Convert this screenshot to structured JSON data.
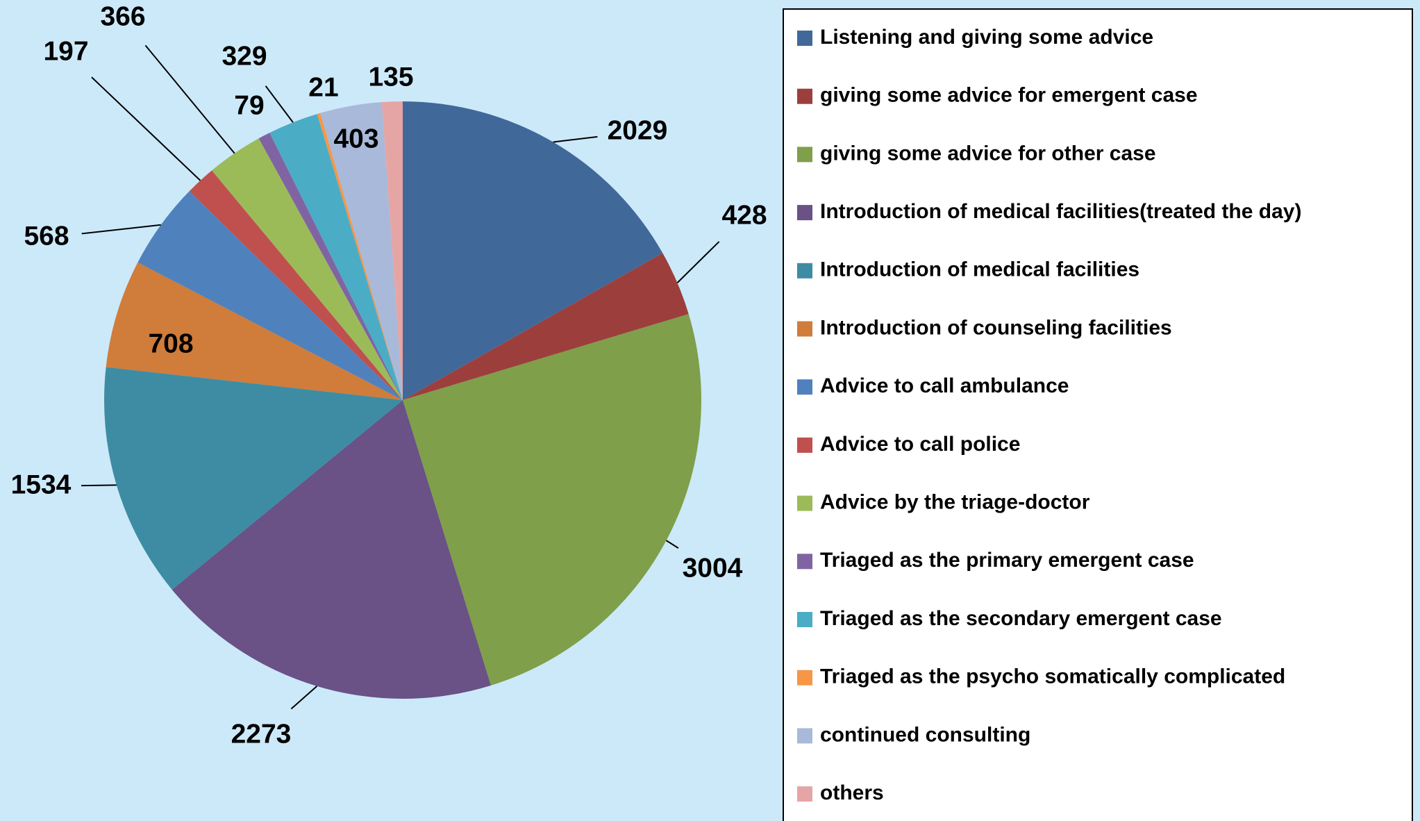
{
  "chart_data": {
    "type": "pie",
    "categories": [
      "Listening and giving some advice",
      "giving some advice for emergent case",
      "giving some advice for other case",
      "Introduction of medical facilities(treated the day)",
      "Introduction of medical facilities",
      "Introduction of counseling facilities",
      "Advice to call ambulance",
      "Advice to call police",
      "Advice by the triage-doctor",
      "Triaged as the primary emergent case",
      "Triaged as the secondary emergent case",
      "Triaged as the psycho somatically complicated",
      "continued consulting",
      "others"
    ],
    "values": [
      2029,
      428,
      3004,
      2273,
      1534,
      708,
      568,
      197,
      366,
      79,
      329,
      21,
      403,
      135
    ],
    "colors": [
      "#40699a",
      "#9c3f3c",
      "#7f9f4a",
      "#6a5186",
      "#3d8ca3",
      "#d07c3a",
      "#4f81bd",
      "#c0504d",
      "#9bbb59",
      "#8064a2",
      "#4bacc6",
      "#f79646",
      "#a9b9d9",
      "#e6a5a5"
    ],
    "legend": "right"
  }
}
